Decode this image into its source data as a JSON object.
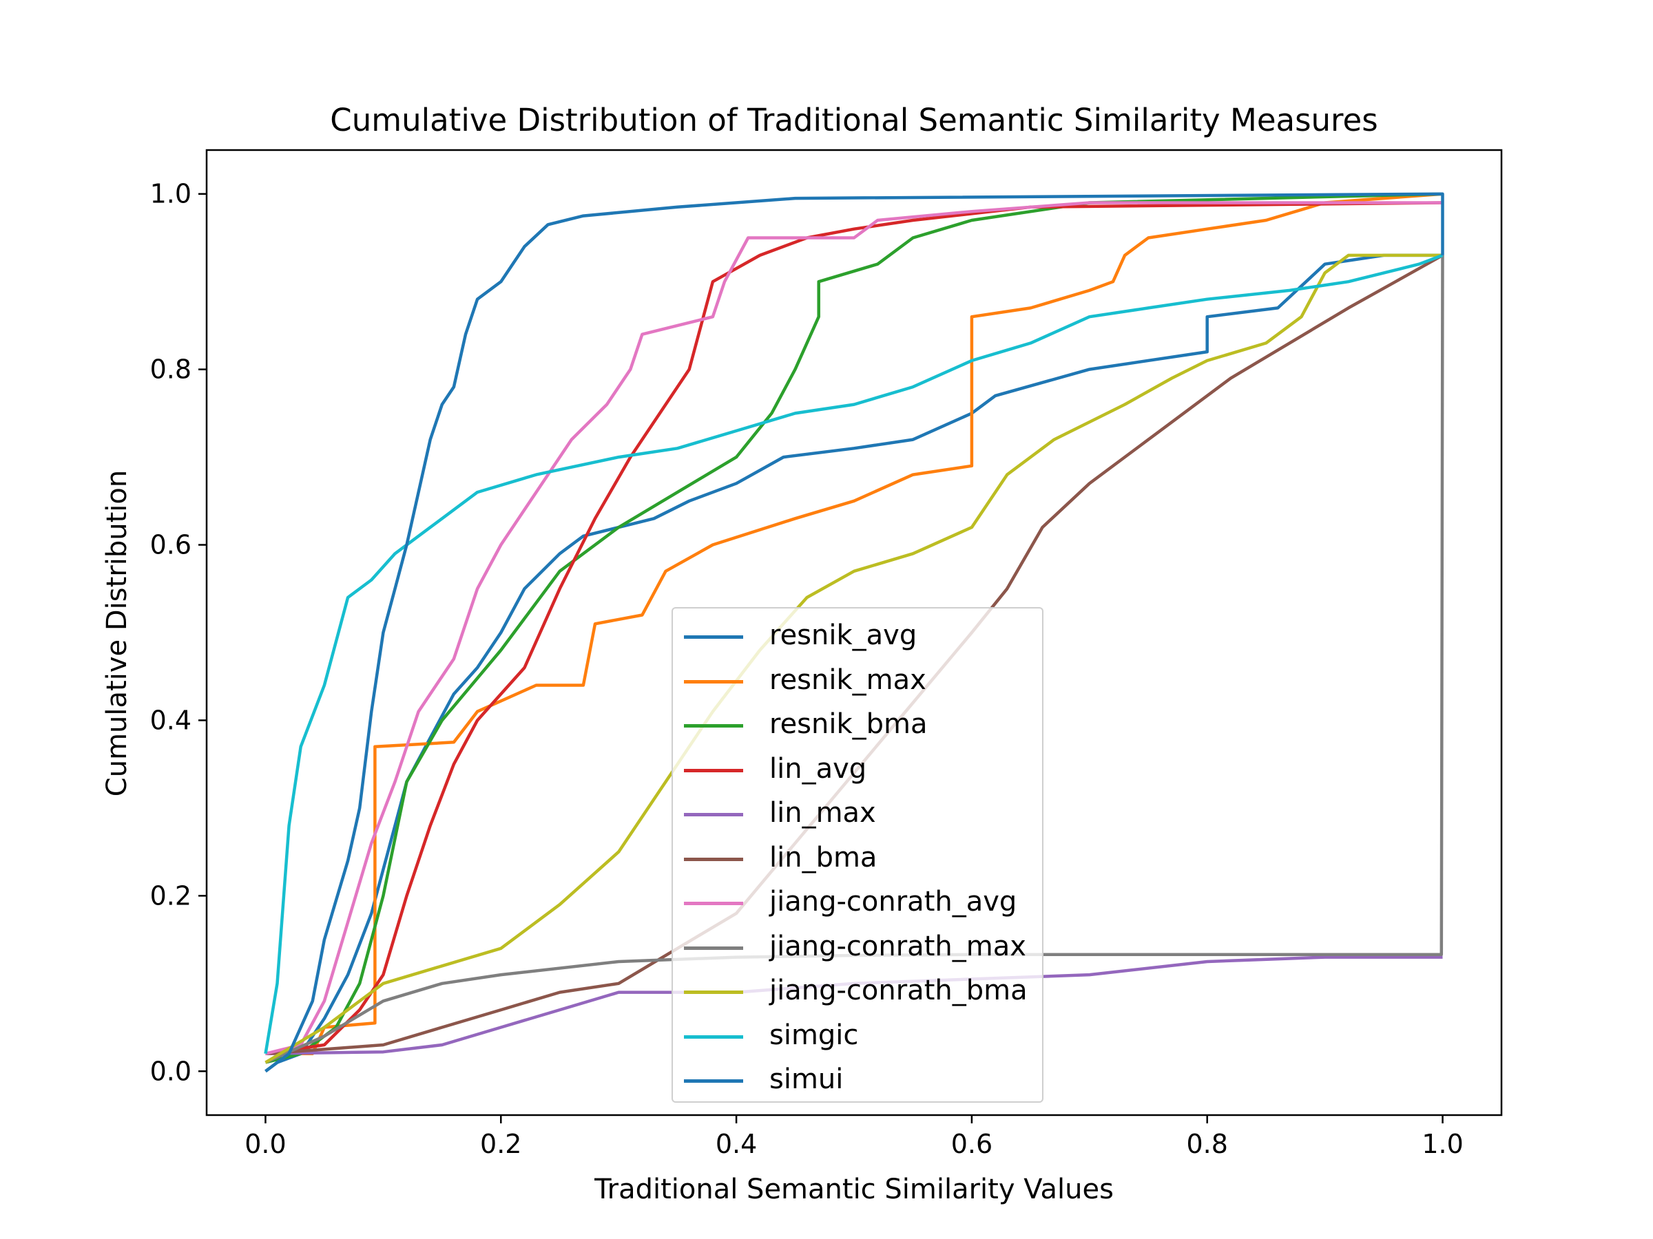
{
  "chart_data": {
    "type": "line",
    "title": "Cumulative Distribution of Traditional Semantic Similarity Measures",
    "xlabel": "Traditional Semantic Similarity Values",
    "ylabel": "Cumulative Distribution",
    "xlim": [
      -0.05,
      1.05
    ],
    "ylim": [
      -0.05,
      1.05
    ],
    "x_ticks": [
      0.0,
      0.2,
      0.4,
      0.6,
      0.8,
      1.0
    ],
    "x_tick_labels": [
      "0.0",
      "0.2",
      "0.4",
      "0.6",
      "0.8",
      "1.0"
    ],
    "y_ticks": [
      0.0,
      0.2,
      0.4,
      0.6,
      0.8,
      1.0
    ],
    "y_tick_labels": [
      "0.0",
      "0.2",
      "0.4",
      "0.6",
      "0.8",
      "1.0"
    ],
    "grid": false,
    "legend_position": "lower-center",
    "series": [
      {
        "name": "resnik_avg",
        "color": "#1f77b4",
        "points": [
          [
            0,
            0
          ],
          [
            0.01,
            0.01
          ],
          [
            0.03,
            0.02
          ],
          [
            0.05,
            0.06
          ],
          [
            0.07,
            0.11
          ],
          [
            0.09,
            0.18
          ],
          [
            0.11,
            0.28
          ],
          [
            0.12,
            0.33
          ],
          [
            0.14,
            0.38
          ],
          [
            0.16,
            0.43
          ],
          [
            0.18,
            0.46
          ],
          [
            0.2,
            0.5
          ],
          [
            0.22,
            0.55
          ],
          [
            0.25,
            0.59
          ],
          [
            0.27,
            0.61
          ],
          [
            0.3,
            0.62
          ],
          [
            0.33,
            0.63
          ],
          [
            0.36,
            0.65
          ],
          [
            0.4,
            0.67
          ],
          [
            0.44,
            0.7
          ],
          [
            0.5,
            0.71
          ],
          [
            0.55,
            0.72
          ],
          [
            0.6,
            0.75
          ],
          [
            0.62,
            0.77
          ],
          [
            0.7,
            0.8
          ],
          [
            0.8,
            0.82
          ],
          [
            0.8,
            0.86
          ],
          [
            0.86,
            0.87
          ],
          [
            0.9,
            0.92
          ],
          [
            0.95,
            0.93
          ],
          [
            1.0,
            0.93
          ]
        ]
      },
      {
        "name": "resnik_max",
        "color": "#ff7f0e",
        "points": [
          [
            0,
            0.02
          ],
          [
            0.04,
            0.02
          ],
          [
            0.05,
            0.05
          ],
          [
            0.093,
            0.055
          ],
          [
            0.093,
            0.37
          ],
          [
            0.16,
            0.375
          ],
          [
            0.18,
            0.41
          ],
          [
            0.23,
            0.44
          ],
          [
            0.27,
            0.44
          ],
          [
            0.28,
            0.51
          ],
          [
            0.32,
            0.52
          ],
          [
            0.34,
            0.57
          ],
          [
            0.38,
            0.6
          ],
          [
            0.45,
            0.63
          ],
          [
            0.5,
            0.65
          ],
          [
            0.55,
            0.68
          ],
          [
            0.6,
            0.69
          ],
          [
            0.6,
            0.86
          ],
          [
            0.65,
            0.87
          ],
          [
            0.7,
            0.89
          ],
          [
            0.72,
            0.9
          ],
          [
            0.73,
            0.93
          ],
          [
            0.75,
            0.95
          ],
          [
            0.8,
            0.96
          ],
          [
            0.85,
            0.97
          ],
          [
            0.9,
            0.99
          ],
          [
            1.0,
            1.0
          ]
        ]
      },
      {
        "name": "resnik_bma",
        "color": "#2ca02c",
        "points": [
          [
            0,
            0.01
          ],
          [
            0.03,
            0.02
          ],
          [
            0.06,
            0.05
          ],
          [
            0.08,
            0.1
          ],
          [
            0.1,
            0.2
          ],
          [
            0.12,
            0.33
          ],
          [
            0.15,
            0.4
          ],
          [
            0.2,
            0.48
          ],
          [
            0.25,
            0.57
          ],
          [
            0.3,
            0.62
          ],
          [
            0.35,
            0.66
          ],
          [
            0.4,
            0.7
          ],
          [
            0.43,
            0.75
          ],
          [
            0.45,
            0.8
          ],
          [
            0.47,
            0.86
          ],
          [
            0.47,
            0.9
          ],
          [
            0.52,
            0.92
          ],
          [
            0.55,
            0.95
          ],
          [
            0.6,
            0.97
          ],
          [
            0.7,
            0.99
          ],
          [
            1.0,
            1.0
          ]
        ]
      },
      {
        "name": "lin_avg",
        "color": "#d62728",
        "points": [
          [
            0,
            0.02
          ],
          [
            0.05,
            0.03
          ],
          [
            0.08,
            0.07
          ],
          [
            0.1,
            0.11
          ],
          [
            0.12,
            0.2
          ],
          [
            0.14,
            0.28
          ],
          [
            0.16,
            0.35
          ],
          [
            0.18,
            0.4
          ],
          [
            0.22,
            0.46
          ],
          [
            0.25,
            0.55
          ],
          [
            0.28,
            0.63
          ],
          [
            0.31,
            0.7
          ],
          [
            0.34,
            0.76
          ],
          [
            0.36,
            0.8
          ],
          [
            0.37,
            0.85
          ],
          [
            0.38,
            0.9
          ],
          [
            0.42,
            0.93
          ],
          [
            0.46,
            0.95
          ],
          [
            0.5,
            0.96
          ],
          [
            0.55,
            0.97
          ],
          [
            0.65,
            0.985
          ],
          [
            1.0,
            0.99
          ]
        ]
      },
      {
        "name": "lin_max",
        "color": "#9467bd",
        "points": [
          [
            0,
            0.02
          ],
          [
            0.1,
            0.022
          ],
          [
            0.15,
            0.03
          ],
          [
            0.2,
            0.05
          ],
          [
            0.25,
            0.07
          ],
          [
            0.3,
            0.09
          ],
          [
            0.4,
            0.09
          ],
          [
            0.5,
            0.1
          ],
          [
            0.6,
            0.105
          ],
          [
            0.7,
            0.11
          ],
          [
            0.8,
            0.125
          ],
          [
            0.9,
            0.13
          ],
          [
            1.0,
            0.13
          ]
        ]
      },
      {
        "name": "lin_bma",
        "color": "#8c564b",
        "points": [
          [
            0,
            0.02
          ],
          [
            0.1,
            0.03
          ],
          [
            0.15,
            0.05
          ],
          [
            0.2,
            0.07
          ],
          [
            0.25,
            0.09
          ],
          [
            0.3,
            0.1
          ],
          [
            0.35,
            0.14
          ],
          [
            0.4,
            0.18
          ],
          [
            0.45,
            0.26
          ],
          [
            0.5,
            0.34
          ],
          [
            0.55,
            0.42
          ],
          [
            0.6,
            0.5
          ],
          [
            0.63,
            0.55
          ],
          [
            0.66,
            0.62
          ],
          [
            0.7,
            0.67
          ],
          [
            0.75,
            0.72
          ],
          [
            0.78,
            0.75
          ],
          [
            0.82,
            0.79
          ],
          [
            0.87,
            0.83
          ],
          [
            0.92,
            0.87
          ],
          [
            0.96,
            0.9
          ],
          [
            1.0,
            0.93
          ]
        ]
      },
      {
        "name": "jiang-conrath_avg",
        "color": "#e377c2",
        "points": [
          [
            0,
            0.02
          ],
          [
            0.03,
            0.03
          ],
          [
            0.05,
            0.08
          ],
          [
            0.07,
            0.17
          ],
          [
            0.09,
            0.26
          ],
          [
            0.11,
            0.33
          ],
          [
            0.13,
            0.41
          ],
          [
            0.16,
            0.47
          ],
          [
            0.18,
            0.55
          ],
          [
            0.2,
            0.6
          ],
          [
            0.23,
            0.66
          ],
          [
            0.26,
            0.72
          ],
          [
            0.29,
            0.76
          ],
          [
            0.31,
            0.8
          ],
          [
            0.32,
            0.84
          ],
          [
            0.35,
            0.85
          ],
          [
            0.38,
            0.86
          ],
          [
            0.39,
            0.9
          ],
          [
            0.41,
            0.95
          ],
          [
            0.5,
            0.95
          ],
          [
            0.52,
            0.97
          ],
          [
            0.6,
            0.98
          ],
          [
            0.7,
            0.99
          ],
          [
            1.0,
            0.99
          ]
        ]
      },
      {
        "name": "jiang-conrath_max",
        "color": "#7f7f7f",
        "points": [
          [
            0,
            0.01
          ],
          [
            0.05,
            0.04
          ],
          [
            0.1,
            0.08
          ],
          [
            0.15,
            0.1
          ],
          [
            0.2,
            0.11
          ],
          [
            0.3,
            0.125
          ],
          [
            0.4,
            0.13
          ],
          [
            0.5,
            0.132
          ],
          [
            0.6,
            0.133
          ],
          [
            0.8,
            0.133
          ],
          [
            0.999,
            0.133
          ],
          [
            1.0,
            0.93
          ]
        ]
      },
      {
        "name": "jiang-conrath_bma",
        "color": "#bcbd22",
        "points": [
          [
            0,
            0.01
          ],
          [
            0.05,
            0.05
          ],
          [
            0.1,
            0.1
          ],
          [
            0.15,
            0.12
          ],
          [
            0.2,
            0.14
          ],
          [
            0.25,
            0.19
          ],
          [
            0.3,
            0.25
          ],
          [
            0.34,
            0.33
          ],
          [
            0.38,
            0.41
          ],
          [
            0.42,
            0.48
          ],
          [
            0.46,
            0.54
          ],
          [
            0.5,
            0.57
          ],
          [
            0.55,
            0.59
          ],
          [
            0.6,
            0.62
          ],
          [
            0.63,
            0.68
          ],
          [
            0.67,
            0.72
          ],
          [
            0.7,
            0.74
          ],
          [
            0.73,
            0.76
          ],
          [
            0.77,
            0.79
          ],
          [
            0.8,
            0.81
          ],
          [
            0.85,
            0.83
          ],
          [
            0.88,
            0.86
          ],
          [
            0.9,
            0.91
          ],
          [
            0.92,
            0.93
          ],
          [
            1.0,
            0.93
          ]
        ]
      },
      {
        "name": "simgic",
        "color": "#17becf",
        "points": [
          [
            0,
            0.02
          ],
          [
            0.01,
            0.1
          ],
          [
            0.02,
            0.28
          ],
          [
            0.03,
            0.37
          ],
          [
            0.05,
            0.44
          ],
          [
            0.07,
            0.54
          ],
          [
            0.09,
            0.56
          ],
          [
            0.11,
            0.59
          ],
          [
            0.14,
            0.62
          ],
          [
            0.18,
            0.66
          ],
          [
            0.23,
            0.68
          ],
          [
            0.3,
            0.7
          ],
          [
            0.35,
            0.71
          ],
          [
            0.4,
            0.73
          ],
          [
            0.45,
            0.75
          ],
          [
            0.5,
            0.76
          ],
          [
            0.55,
            0.78
          ],
          [
            0.6,
            0.81
          ],
          [
            0.65,
            0.83
          ],
          [
            0.7,
            0.86
          ],
          [
            0.75,
            0.87
          ],
          [
            0.8,
            0.88
          ],
          [
            0.87,
            0.89
          ],
          [
            0.92,
            0.9
          ],
          [
            0.98,
            0.92
          ],
          [
            1.0,
            0.93
          ]
        ]
      },
      {
        "name": "simui",
        "color": "#1f77b4",
        "points": [
          [
            0,
            0
          ],
          [
            0.02,
            0.02
          ],
          [
            0.04,
            0.08
          ],
          [
            0.05,
            0.15
          ],
          [
            0.07,
            0.24
          ],
          [
            0.08,
            0.3
          ],
          [
            0.09,
            0.41
          ],
          [
            0.1,
            0.5
          ],
          [
            0.11,
            0.55
          ],
          [
            0.12,
            0.6
          ],
          [
            0.13,
            0.66
          ],
          [
            0.14,
            0.72
          ],
          [
            0.15,
            0.76
          ],
          [
            0.16,
            0.78
          ],
          [
            0.17,
            0.84
          ],
          [
            0.18,
            0.88
          ],
          [
            0.2,
            0.9
          ],
          [
            0.22,
            0.94
          ],
          [
            0.24,
            0.965
          ],
          [
            0.27,
            0.975
          ],
          [
            0.35,
            0.985
          ],
          [
            0.45,
            0.995
          ],
          [
            1.0,
            1.0
          ],
          [
            1.0,
            0.93
          ]
        ]
      }
    ]
  }
}
